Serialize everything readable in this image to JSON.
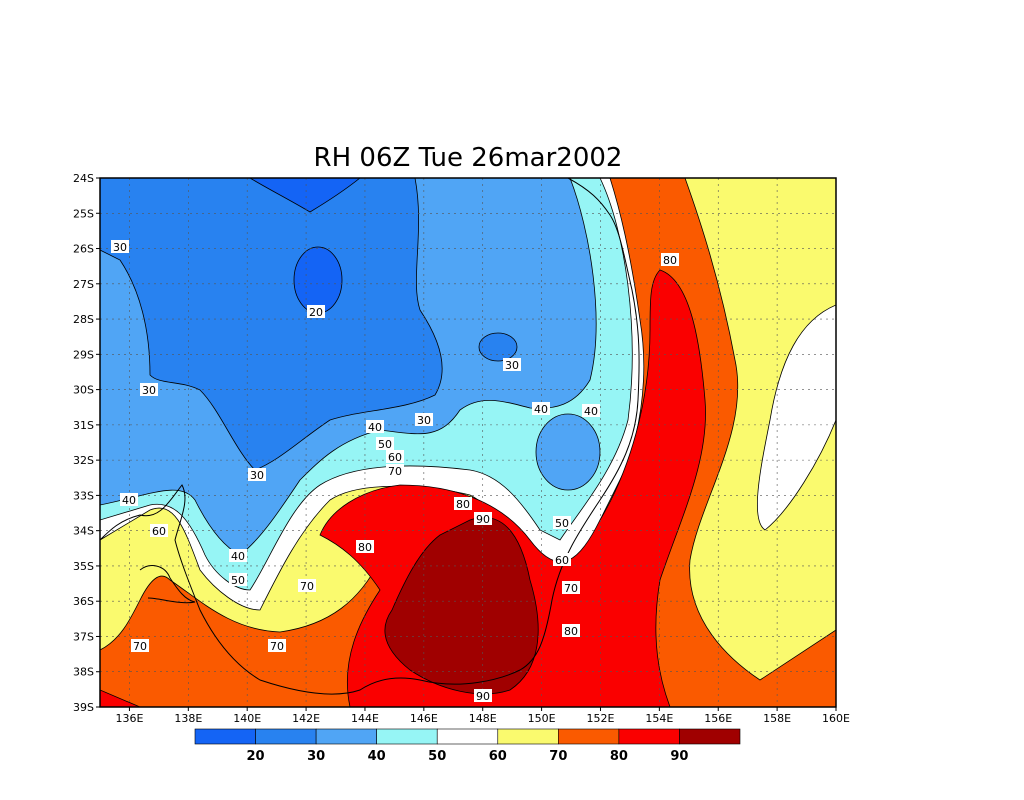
{
  "title": "RH 06Z Tue 26mar2002",
  "colors": {
    "c10": "#1464f5",
    "c20": "#2882f0",
    "c30": "#50a5f5",
    "c40": "#96f5f5",
    "c50": "#ffffff",
    "c60": "#fafa6e",
    "c70": "#fa5a00",
    "c80": "#fa0000",
    "c90": "#a00000"
  },
  "lat_ticks": [
    "24S",
    "25S",
    "26S",
    "27S",
    "28S",
    "29S",
    "30S",
    "31S",
    "32S",
    "33S",
    "34S",
    "35S",
    "36S",
    "37S",
    "38S",
    "39S"
  ],
  "lon_ticks": [
    "136E",
    "138E",
    "140E",
    "142E",
    "144E",
    "146E",
    "148E",
    "150E",
    "152E",
    "154E",
    "156E",
    "158E",
    "160E"
  ],
  "contour_labels": [
    "30",
    "20",
    "30",
    "30",
    "30",
    "40",
    "40",
    "40",
    "50",
    "60",
    "70",
    "30",
    "40",
    "60",
    "40",
    "50",
    "70",
    "80",
    "90",
    "80",
    "50",
    "60",
    "70",
    "80",
    "70",
    "70",
    "90",
    "80"
  ],
  "colorbar": {
    "colors": [
      "#1464f5",
      "#2882f0",
      "#50a5f5",
      "#96f5f5",
      "#ffffff",
      "#fafa6e",
      "#fa5a00",
      "#fa0000",
      "#a00000"
    ],
    "labels": [
      "20",
      "30",
      "40",
      "50",
      "60",
      "70",
      "80",
      "90"
    ]
  }
}
